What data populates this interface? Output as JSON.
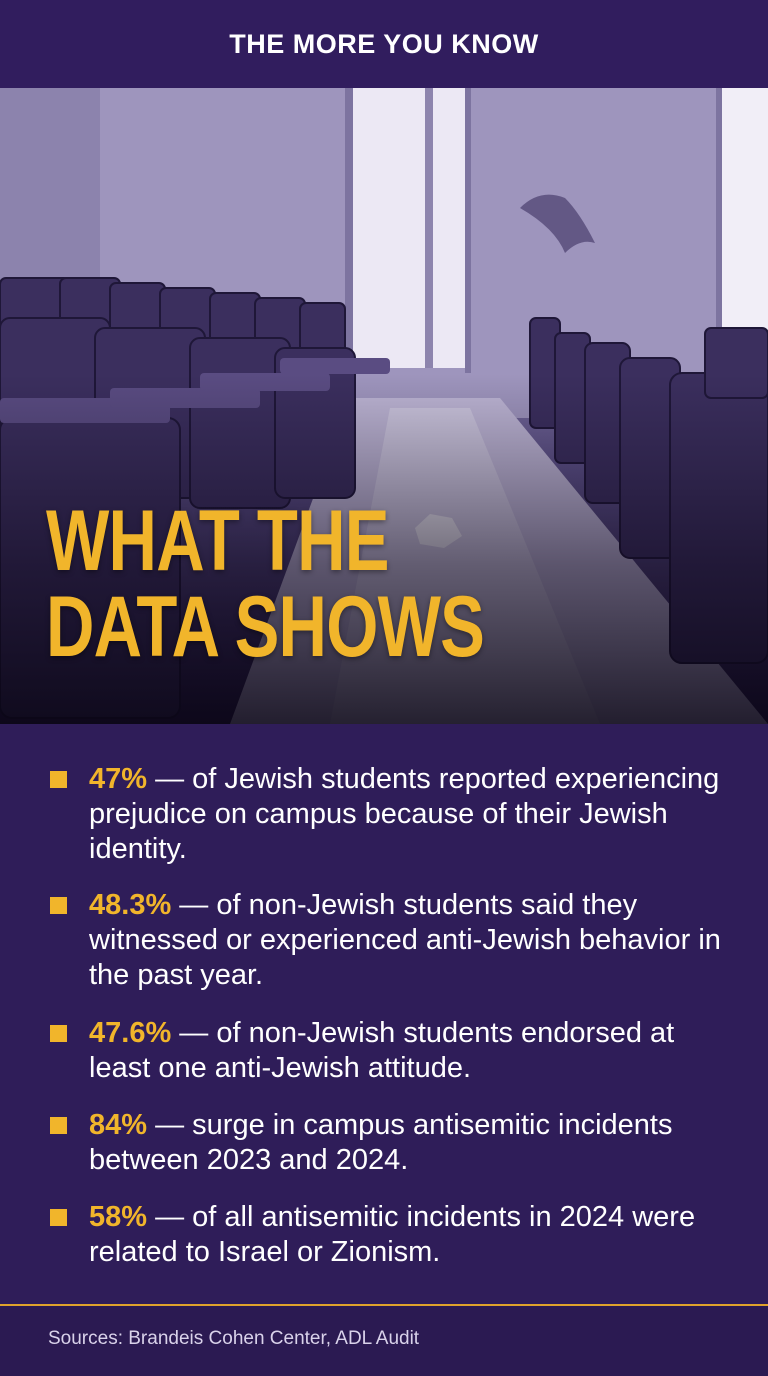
{
  "header": {
    "title": "THE MORE YOU KNOW"
  },
  "hero": {
    "headline_line1": "WHAT THE",
    "headline_line2": "DATA SHOWS",
    "image_icon": "lecture-hall-photo"
  },
  "stats": [
    {
      "pct": "47%",
      "text": " — of Jewish students reported experiencing prejudice on campus because of their Jewish identity."
    },
    {
      "pct": "48.3%",
      "text": " — of non-Jewish students said they witnessed or experienced anti-Jewish behavior in the past year."
    },
    {
      "pct": "47.6%",
      "text": " — of non-Jewish students endorsed at least one anti-Jewish attitude."
    },
    {
      "pct": "84%",
      "text": " — surge in campus antisemitic incidents between 2023 and 2024."
    },
    {
      "pct": "58%",
      "text": " — of all antisemitic incidents in 2024 were related to Israel or Zionism."
    }
  ],
  "footer": {
    "sources": "Sources: Brandeis Cohen Center, ADL Audit"
  },
  "colors": {
    "accent": "#f1b52b",
    "background": "#2f1d59",
    "text": "#ffffff"
  }
}
